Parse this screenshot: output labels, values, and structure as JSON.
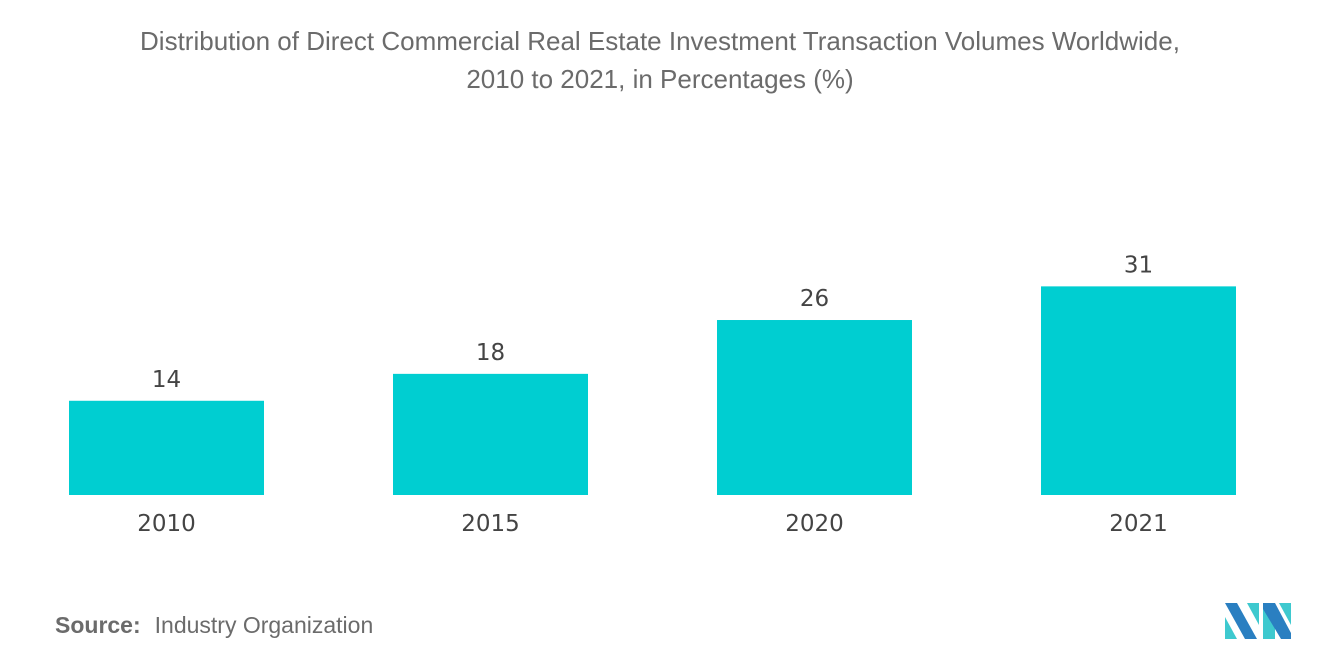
{
  "chart_data": {
    "type": "bar",
    "title_line1": "Distribution of Direct Commercial Real Estate Investment Transaction Volumes Worldwide,",
    "title_line2": "2010 to 2021, in Percentages (%)",
    "categories": [
      "2010",
      "2015",
      "2020",
      "2021"
    ],
    "values": [
      14,
      18,
      26,
      31
    ],
    "xlabel": "",
    "ylabel": "",
    "ylim": [
      0,
      31
    ],
    "grid": false,
    "legend": "none",
    "bar_color": "#00CED1"
  },
  "source": {
    "label": "Source:",
    "text": "Industry Organization"
  },
  "logo": {
    "colors": [
      "#2a7fc1",
      "#3ec9cf"
    ]
  }
}
